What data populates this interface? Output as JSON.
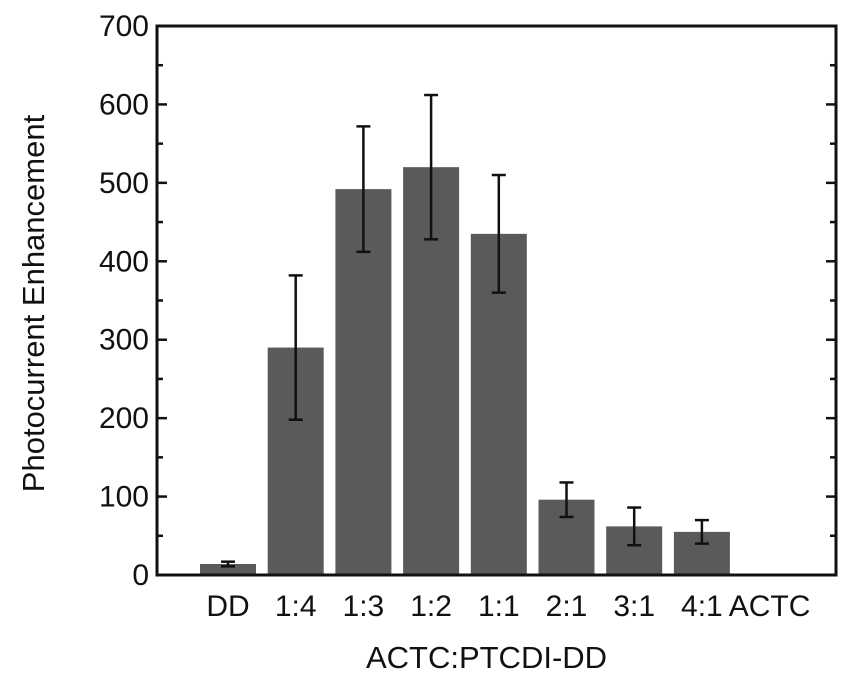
{
  "chart_data": {
    "type": "bar",
    "title": "",
    "xlabel": "ACTC:PTCDI-DD",
    "ylabel": "Photocurrent Enhancement",
    "ylim": [
      0,
      700
    ],
    "yticks": [
      "0",
      "100",
      "200",
      "300",
      "400",
      "500",
      "600",
      "700"
    ],
    "categories": [
      "DD",
      "1:4",
      "1:3",
      "1:2",
      "1:1",
      "2:1",
      "3:1",
      "4:1",
      "ACTC"
    ],
    "values": [
      14,
      290,
      492,
      520,
      435,
      96,
      62,
      55,
      1
    ],
    "errors": [
      3,
      92,
      80,
      92,
      75,
      22,
      24,
      15,
      0
    ],
    "grid": false,
    "colors": {
      "bar": "#5a5a5a",
      "axis": "#111111",
      "background": "#ffffff"
    }
  }
}
